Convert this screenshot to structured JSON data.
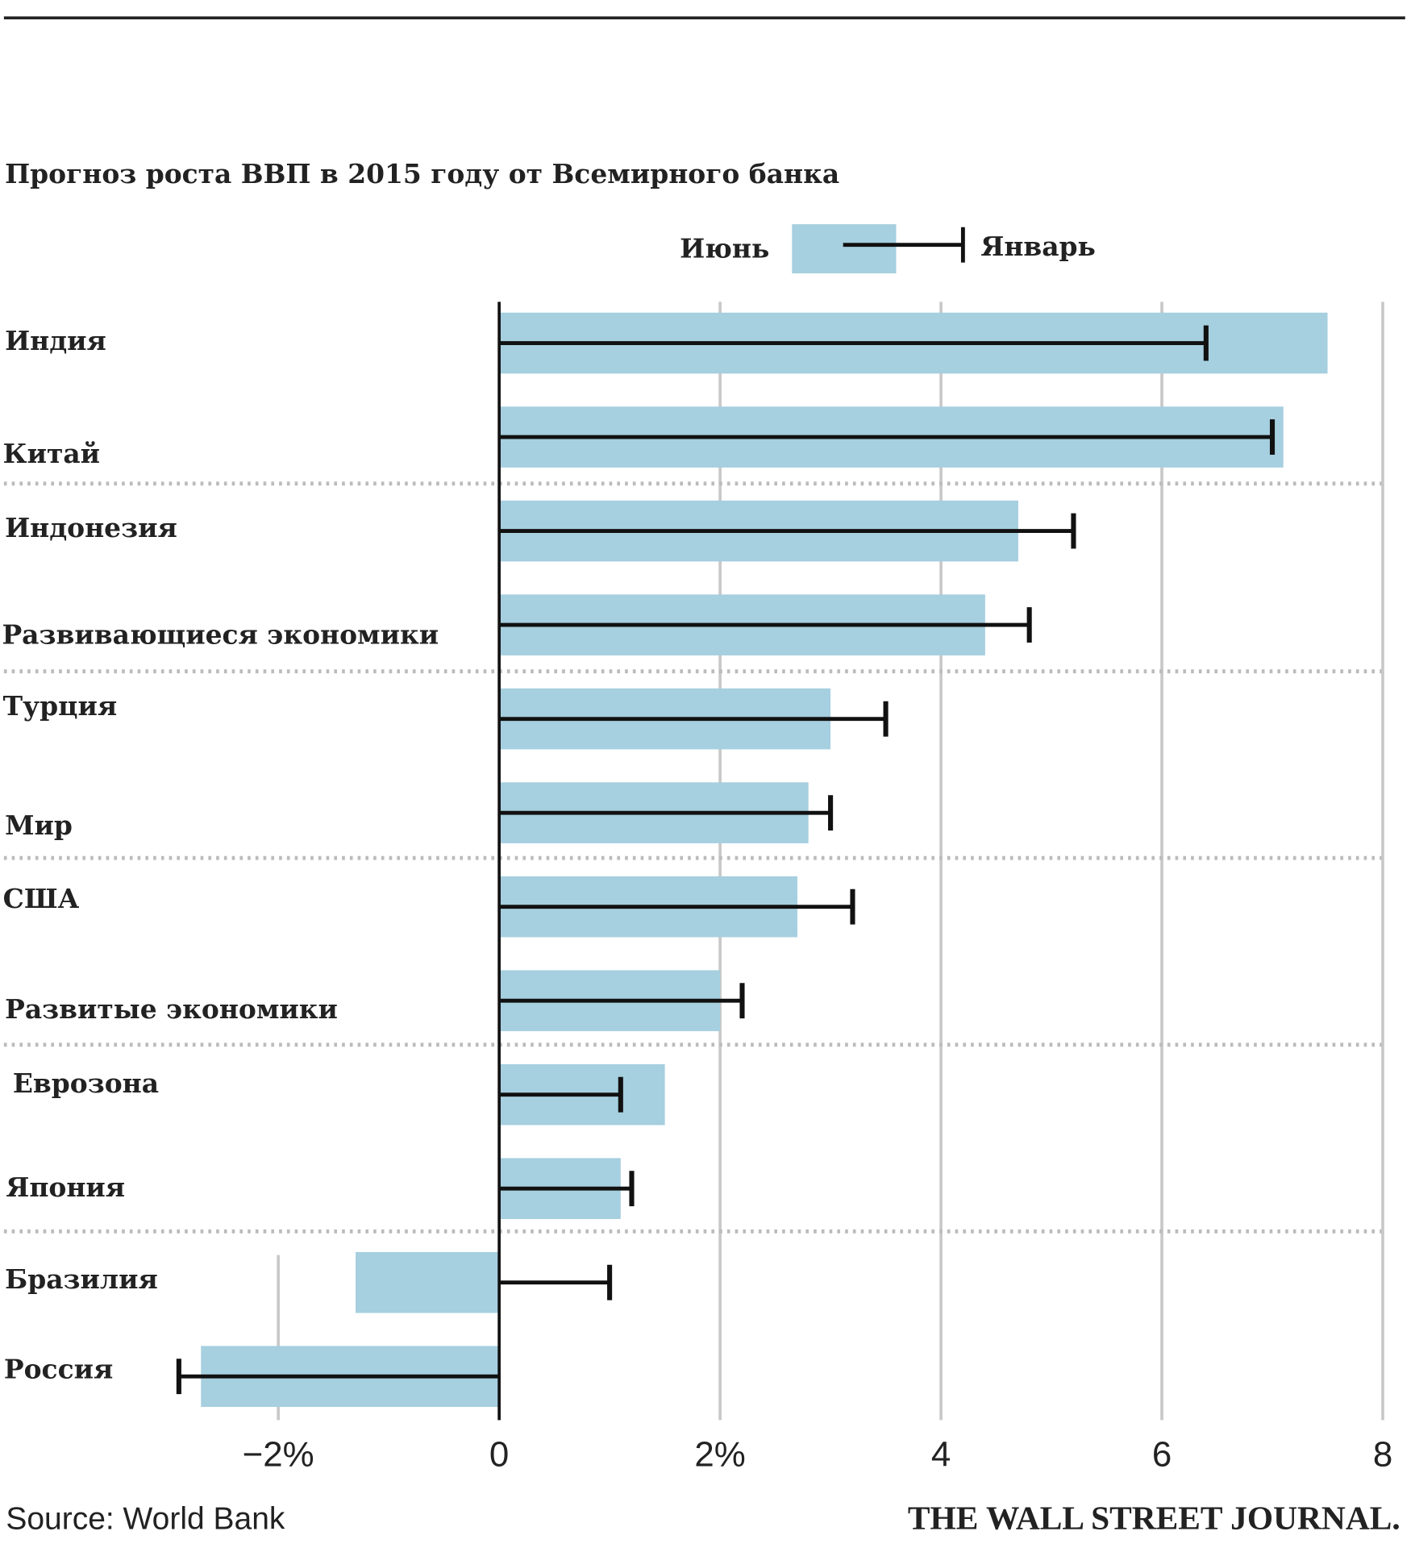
{
  "chart_data": {
    "type": "bar",
    "title": "Прогноз роста ВВП в 2015 году от Всемирного банка",
    "legend": {
      "bar": "Июнь",
      "marker": "Январь",
      "placement": "top-right"
    },
    "categories": [
      "Индия",
      "Китай",
      "Индонезия",
      "Развивающиеся экономики",
      "Турция",
      "Мир",
      "США",
      "Развитые экономики",
      "Еврозона",
      "Япония",
      "Бразилия",
      "Россия"
    ],
    "series": [
      {
        "name": "Июнь",
        "type": "bar",
        "values": [
          7.5,
          7.1,
          4.7,
          4.4,
          3.0,
          2.8,
          2.7,
          2.0,
          1.5,
          1.1,
          -1.3,
          -2.7
        ]
      },
      {
        "name": "Январь",
        "type": "marker",
        "values": [
          6.4,
          7.0,
          5.2,
          4.8,
          3.5,
          3.0,
          3.2,
          2.2,
          1.1,
          1.2,
          1.0,
          -2.9
        ]
      }
    ],
    "xlim": [
      -2,
      8
    ],
    "xticks": [
      {
        "v": -2,
        "label": "−2%"
      },
      {
        "v": 0,
        "label": "0"
      },
      {
        "v": 2,
        "label": "2%"
      },
      {
        "v": 4,
        "label": "4"
      },
      {
        "v": 6,
        "label": "6"
      },
      {
        "v": 8,
        "label": "8"
      }
    ],
    "grid": true,
    "source": "Source: World Bank",
    "publisher": "THE WALL STREET JOURNAL."
  },
  "colors": {
    "bar": "#a6cfdf",
    "marker": "#111111",
    "grid": "#c8c8c8"
  }
}
